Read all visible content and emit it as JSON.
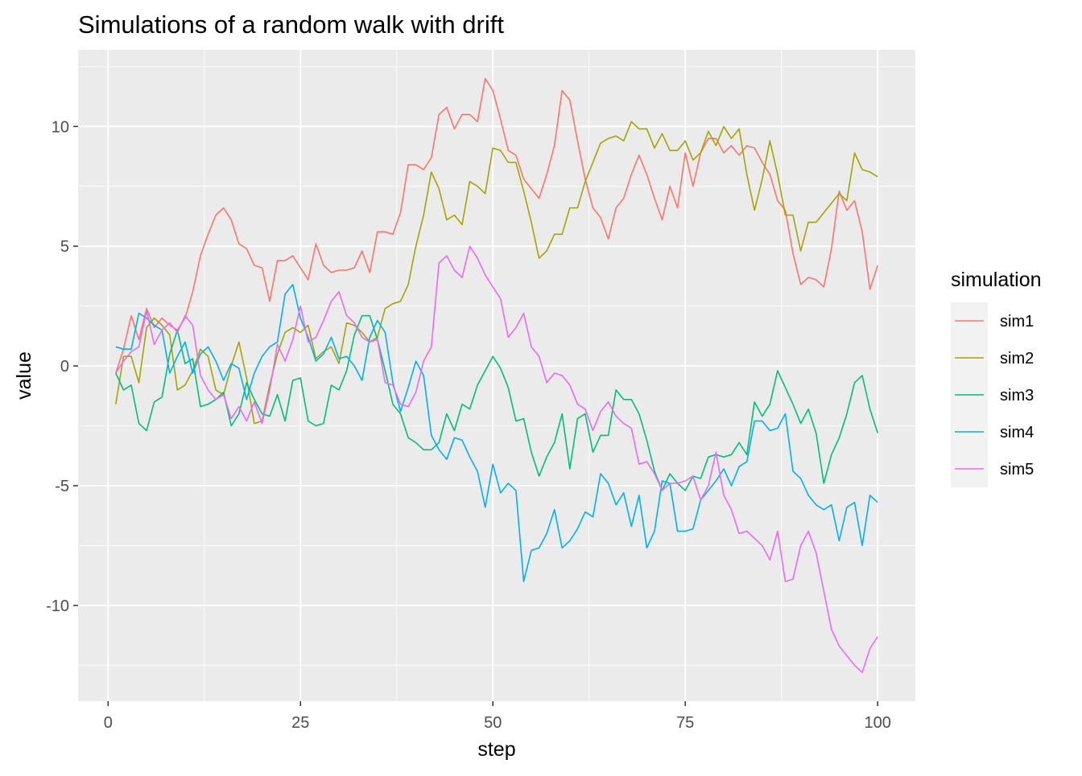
{
  "chart_data": {
    "type": "line",
    "title": "Simulations of a random walk with drift",
    "xlabel": "step",
    "ylabel": "value",
    "xlim": [
      -3.9,
      104.9
    ],
    "ylim": [
      -14.0,
      13.2
    ],
    "xticks": [
      0,
      25,
      50,
      75,
      100
    ],
    "yticks": [
      -10,
      -5,
      0,
      5,
      10
    ],
    "grid": true,
    "legend": {
      "title": "simulation",
      "placement": "right"
    },
    "x_start": 1,
    "series": [
      {
        "name": "sim1",
        "color": "#F8766D",
        "values": [
          -0.3,
          0.7,
          2.1,
          1.1,
          2.4,
          1.6,
          2.0,
          1.7,
          1.5,
          2.0,
          3.1,
          4.6,
          5.5,
          6.3,
          6.6,
          6.1,
          5.1,
          4.9,
          4.2,
          4.1,
          2.7,
          4.4,
          4.4,
          4.6,
          4.1,
          3.6,
          5.1,
          4.2,
          3.9,
          4.0,
          4.0,
          4.1,
          4.8,
          3.9,
          5.6,
          5.6,
          5.5,
          6.4,
          8.4,
          8.4,
          8.2,
          8.7,
          10.5,
          10.8,
          9.9,
          10.5,
          10.5,
          10.2,
          12.0,
          11.5,
          10.3,
          9.0,
          8.8,
          7.8,
          7.4,
          7.0,
          8.0,
          9.2,
          11.5,
          11.1,
          9.4,
          7.8,
          6.6,
          6.2,
          5.3,
          6.6,
          7.0,
          8.0,
          8.8,
          8.0,
          7.0,
          6.1,
          7.5,
          6.6,
          8.9,
          7.5,
          8.9,
          9.5,
          9.5,
          8.9,
          9.2,
          8.8,
          9.2,
          9.1,
          8.5,
          8.0,
          6.9,
          6.5,
          4.7,
          3.4,
          3.7,
          3.6,
          3.3,
          4.9,
          7.3,
          6.5,
          6.9,
          5.6,
          3.2,
          4.2
        ]
      },
      {
        "name": "sim2",
        "color": "#A3A500",
        "values": [
          -1.6,
          0.4,
          0.4,
          -0.7,
          1.6,
          2.0,
          1.7,
          1.3,
          -1.0,
          -0.8,
          -0.2,
          0.7,
          0.4,
          -1.0,
          -1.2,
          0.0,
          1.0,
          -0.5,
          -2.4,
          -2.3,
          -0.8,
          0.5,
          1.4,
          1.6,
          1.4,
          1.7,
          0.3,
          0.6,
          0.8,
          0.1,
          1.8,
          1.7,
          1.4,
          1.0,
          1.2,
          2.4,
          2.6,
          2.7,
          3.4,
          5.0,
          6.3,
          8.1,
          7.4,
          6.1,
          6.3,
          5.9,
          7.7,
          7.5,
          7.2,
          9.1,
          9.0,
          8.5,
          8.5,
          7.3,
          6.0,
          4.5,
          4.8,
          5.5,
          5.5,
          6.6,
          6.6,
          7.7,
          8.5,
          9.3,
          9.5,
          9.6,
          9.4,
          10.2,
          9.9,
          9.9,
          9.1,
          9.7,
          9.0,
          9.0,
          9.4,
          8.6,
          8.9,
          9.8,
          9.2,
          10.0,
          9.5,
          9.9,
          8.0,
          6.5,
          7.8,
          9.4,
          8.0,
          6.3,
          6.3,
          4.8,
          6.0,
          6.0,
          6.4,
          6.8,
          7.2,
          6.9,
          8.9,
          8.2,
          8.1,
          7.9
        ]
      },
      {
        "name": "sim3",
        "color": "#00BF7D",
        "values": [
          -0.3,
          -1.0,
          -0.8,
          -2.4,
          -2.7,
          -1.5,
          -1.3,
          0.5,
          1.5,
          0.1,
          0.3,
          -1.7,
          -1.6,
          -1.4,
          -1.1,
          -2.5,
          -2.0,
          -0.7,
          -1.4,
          -2.0,
          -2.1,
          -1.2,
          -2.3,
          -0.6,
          -0.5,
          -2.3,
          -2.5,
          -2.4,
          -0.8,
          -1.0,
          -0.2,
          1.3,
          2.1,
          2.1,
          1.1,
          -0.2,
          -1.6,
          -2.0,
          -3.0,
          -3.2,
          -3.5,
          -3.5,
          -3.2,
          -2.0,
          -2.7,
          -1.6,
          -1.8,
          -0.8,
          -0.2,
          0.4,
          -0.1,
          -0.9,
          -2.3,
          -2.2,
          -3.6,
          -4.6,
          -3.8,
          -3.2,
          -2.0,
          -4.3,
          -2.2,
          -2.0,
          -3.6,
          -2.9,
          -2.9,
          -1.0,
          -1.4,
          -1.4,
          -2.0,
          -3.1,
          -4.4,
          -5.2,
          -4.5,
          -4.9,
          -5.2,
          -4.6,
          -4.7,
          -3.8,
          -3.7,
          -3.8,
          -3.7,
          -3.2,
          -3.7,
          -1.5,
          -2.1,
          -1.6,
          -0.2,
          -0.9,
          -1.6,
          -2.4,
          -1.8,
          -2.8,
          -4.9,
          -3.7,
          -3.0,
          -2.0,
          -0.7,
          -0.4,
          -1.8,
          -2.8
        ]
      },
      {
        "name": "sim4",
        "color": "#00B0F6",
        "values": [
          0.8,
          0.7,
          0.7,
          2.2,
          2.0,
          1.7,
          1.5,
          -0.3,
          0.4,
          1.0,
          -0.3,
          0.5,
          0.8,
          0.2,
          -0.6,
          0.1,
          -0.1,
          -1.4,
          -0.3,
          0.4,
          0.8,
          1.0,
          3.0,
          3.4,
          2.0,
          1.2,
          0.2,
          0.5,
          1.2,
          0.3,
          0.4,
          0.0,
          -0.6,
          1.2,
          1.9,
          1.4,
          -0.7,
          -1.9,
          -0.9,
          0.2,
          -0.4,
          -2.9,
          -3.5,
          -3.9,
          -3.0,
          -3.1,
          -3.8,
          -4.4,
          -5.9,
          -4.1,
          -5.3,
          -4.9,
          -5.2,
          -9.0,
          -7.7,
          -7.6,
          -7.0,
          -6.0,
          -7.6,
          -7.3,
          -6.8,
          -6.1,
          -6.3,
          -4.5,
          -4.9,
          -5.8,
          -5.3,
          -6.7,
          -5.4,
          -7.6,
          -6.9,
          -4.8,
          -4.9,
          -6.9,
          -6.9,
          -6.8,
          -5.6,
          -5.2,
          -4.8,
          -4.3,
          -5.0,
          -4.2,
          -4.0,
          -2.3,
          -2.3,
          -2.7,
          -2.6,
          -2.0,
          -4.4,
          -4.7,
          -5.4,
          -5.8,
          -6.0,
          -5.8,
          -7.3,
          -5.9,
          -5.7,
          -7.5,
          -5.4,
          -5.7
        ]
      },
      {
        "name": "sim5",
        "color": "#E76BF3",
        "values": [
          -0.3,
          0.2,
          0.6,
          0.8,
          2.3,
          0.9,
          1.5,
          1.8,
          1.4,
          2.1,
          1.7,
          -0.4,
          -1.0,
          -1.4,
          -1.2,
          -2.2,
          -1.7,
          -2.3,
          -1.5,
          -2.4,
          -1.0,
          0.9,
          0.2,
          1.1,
          2.5,
          1.0,
          1.2,
          1.9,
          2.7,
          3.1,
          2.1,
          1.8,
          1.2,
          1.0,
          1.1,
          -0.7,
          -0.8,
          -1.6,
          -1.7,
          -1.1,
          0.2,
          0.8,
          4.3,
          4.6,
          4.0,
          3.7,
          5.0,
          4.5,
          3.8,
          3.3,
          2.8,
          1.2,
          1.6,
          2.2,
          0.8,
          0.4,
          -0.7,
          -0.3,
          -0.4,
          -0.8,
          -1.6,
          -1.8,
          -2.7,
          -1.9,
          -1.5,
          -2.1,
          -2.4,
          -2.6,
          -4.1,
          -4.0,
          -4.5,
          -5.2,
          -4.9,
          -4.9,
          -4.8,
          -4.6,
          -5.6,
          -5.0,
          -3.6,
          -5.4,
          -6.0,
          -7.0,
          -6.9,
          -7.2,
          -7.5,
          -8.1,
          -6.9,
          -9.0,
          -8.9,
          -7.5,
          -6.9,
          -7.8,
          -9.4,
          -11.0,
          -11.7,
          -12.1,
          -12.5,
          -12.8,
          -11.8,
          -11.3
        ]
      }
    ]
  }
}
